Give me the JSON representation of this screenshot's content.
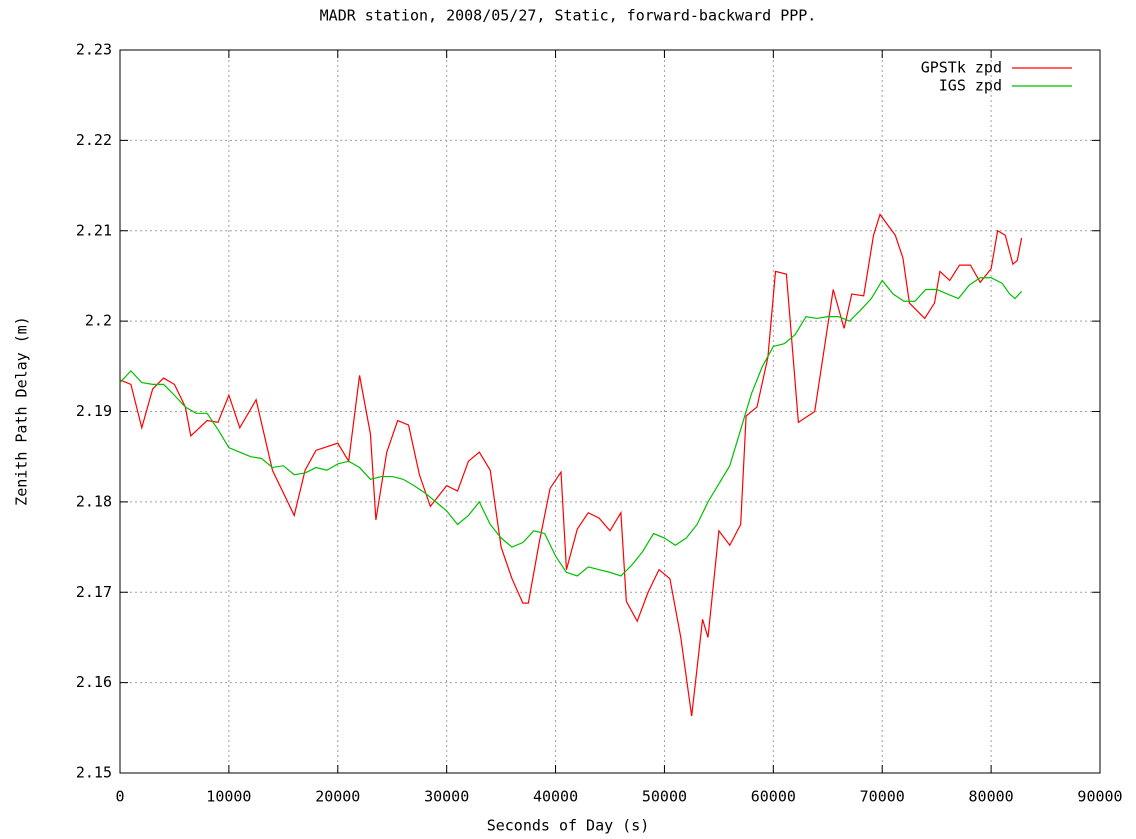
{
  "chart_data": {
    "type": "line",
    "title": "MADR station, 2008/05/27, Static, forward-backward PPP.",
    "xlabel": "Seconds of Day (s)",
    "ylabel": "Zenith Path Delay (m)",
    "xlim": [
      0,
      90000
    ],
    "ylim": [
      2.15,
      2.23
    ],
    "xticks": [
      0,
      10000,
      20000,
      30000,
      40000,
      50000,
      60000,
      70000,
      80000,
      90000
    ],
    "yticks": [
      2.15,
      2.16,
      2.17,
      2.18,
      2.19,
      2.2,
      2.21,
      2.22,
      2.23
    ],
    "grid": true,
    "legend": "upper right",
    "series": [
      {
        "name": "GPSTk zpd",
        "color": "#ff0000",
        "x": [
          0,
          1000,
          2000,
          3000,
          4000,
          5000,
          6000,
          6500,
          8000,
          9000,
          10000,
          11000,
          12500,
          14000,
          16000,
          17000,
          18000,
          20000,
          21000,
          22000,
          23000,
          23500,
          24500,
          25500,
          26500,
          27500,
          28500,
          30000,
          31000,
          32000,
          33000,
          34000,
          35000,
          36000,
          37000,
          37500,
          38500,
          39500,
          40500,
          41000,
          42000,
          43000,
          44000,
          45000,
          46000,
          46500,
          47500,
          48500,
          49500,
          50500,
          51500,
          52500,
          53500,
          54000,
          55000,
          56000,
          57000,
          57500,
          58500,
          59500,
          60200,
          61200,
          62300,
          63800,
          65500,
          66500,
          67200,
          68300,
          69200,
          69800,
          71200,
          71900,
          72500,
          73900,
          74800,
          75300,
          76200,
          77100,
          78100,
          79000,
          80000,
          80600,
          81300,
          82000,
          82400,
          82800
        ],
        "values": [
          2.1935,
          2.193,
          2.1882,
          2.1925,
          2.1937,
          2.193,
          2.1905,
          2.1873,
          2.189,
          2.1888,
          2.1918,
          2.1882,
          2.1913,
          2.1835,
          2.1785,
          2.1835,
          2.1857,
          2.1865,
          2.1845,
          2.194,
          2.1875,
          2.178,
          2.1855,
          2.189,
          2.1885,
          2.183,
          2.1795,
          2.1818,
          2.1812,
          2.1845,
          2.1855,
          2.1835,
          2.175,
          2.1715,
          2.1688,
          2.1688,
          2.1755,
          2.1815,
          2.1833,
          2.1725,
          2.177,
          2.1788,
          2.1782,
          2.1768,
          2.1788,
          2.169,
          2.1668,
          2.17,
          2.1725,
          2.1715,
          2.165,
          2.1563,
          2.167,
          2.165,
          2.1768,
          2.1752,
          2.1775,
          2.1895,
          2.1905,
          2.196,
          2.2055,
          2.2052,
          2.1888,
          2.19,
          2.2035,
          2.1992,
          2.203,
          2.2028,
          2.2095,
          2.2118,
          2.2095,
          2.207,
          2.202,
          2.2003,
          2.202,
          2.2055,
          2.2045,
          2.2062,
          2.2062,
          2.2043,
          2.2058,
          2.21,
          2.2095,
          2.2063,
          2.2067,
          2.2092
        ]
      },
      {
        "name": "IGS zpd",
        "color": "#00c000",
        "x": [
          0,
          1000,
          2000,
          3000,
          4000,
          5000,
          6000,
          7000,
          8000,
          9000,
          10000,
          11000,
          12000,
          13000,
          14000,
          15000,
          16000,
          17000,
          18000,
          19000,
          20000,
          21000,
          22000,
          23000,
          24000,
          25000,
          26000,
          27000,
          28000,
          29000,
          30000,
          31000,
          32000,
          33000,
          34000,
          35000,
          36000,
          37000,
          38000,
          39000,
          40000,
          41000,
          42000,
          43000,
          44000,
          45000,
          46000,
          47000,
          48000,
          49000,
          50000,
          51000,
          52000,
          53000,
          54000,
          55000,
          56000,
          57000,
          58000,
          59000,
          60000,
          61000,
          62000,
          63000,
          64000,
          65000,
          66000,
          67000,
          68000,
          69000,
          70000,
          71000,
          72000,
          73000,
          74000,
          75000,
          76000,
          77000,
          78000,
          79000,
          80000,
          81000,
          81700,
          82200,
          82800
        ],
        "values": [
          2.1932,
          2.1945,
          2.1932,
          2.193,
          2.193,
          2.1918,
          2.1905,
          2.1898,
          2.1898,
          2.188,
          2.186,
          2.1855,
          2.185,
          2.1848,
          2.1838,
          2.184,
          2.183,
          2.1832,
          2.1838,
          2.1835,
          2.1842,
          2.1845,
          2.1838,
          2.1825,
          2.1828,
          2.1828,
          2.1825,
          2.1818,
          2.181,
          2.18,
          2.179,
          2.1775,
          2.1785,
          2.18,
          2.1775,
          2.176,
          2.175,
          2.1755,
          2.1768,
          2.1765,
          2.174,
          2.1722,
          2.1718,
          2.1728,
          2.1725,
          2.1722,
          2.1718,
          2.173,
          2.1745,
          2.1765,
          2.176,
          2.1752,
          2.176,
          2.1775,
          2.18,
          2.182,
          2.184,
          2.188,
          2.192,
          2.195,
          2.1972,
          2.1975,
          2.1985,
          2.2005,
          2.2003,
          2.2005,
          2.2005,
          2.2,
          2.2012,
          2.2025,
          2.2045,
          2.203,
          2.2022,
          2.2022,
          2.2035,
          2.2035,
          2.203,
          2.2025,
          2.204,
          2.2048,
          2.2048,
          2.2042,
          2.203,
          2.2025,
          2.2033
        ]
      }
    ]
  }
}
